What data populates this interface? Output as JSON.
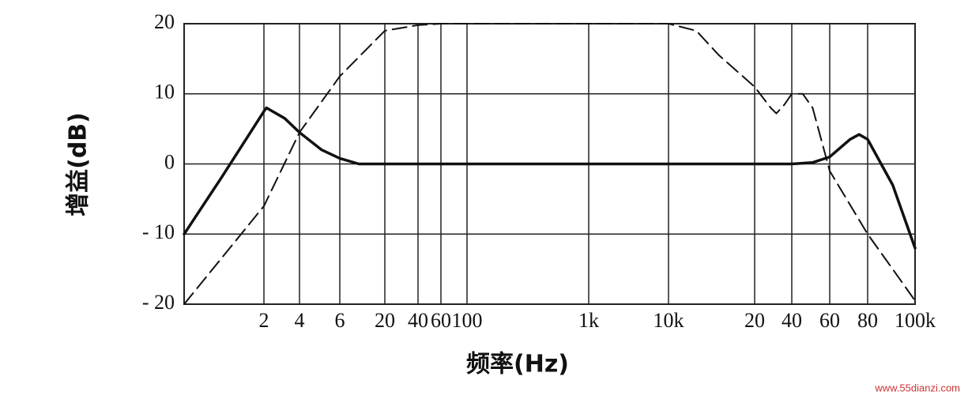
{
  "chart_data": {
    "type": "line",
    "ylabel": "增益(dB)",
    "xlabel": "频率(Hz)",
    "watermark": "www.55dianzi.com",
    "xlim": [
      1,
      100000
    ],
    "xticks": [
      2,
      4,
      6,
      20,
      40,
      60,
      100,
      {
        "value": 1000,
        "label": "1k"
      },
      {
        "value": 10000,
        "label": "10k"
      },
      {
        "value": 20000,
        "label": "20"
      },
      {
        "value": 40000,
        "label": "40"
      },
      {
        "value": 60000,
        "label": "60"
      },
      {
        "value": 80000,
        "label": "80"
      },
      {
        "value": 100000,
        "label": "100k"
      }
    ],
    "ylim": [
      -20,
      20
    ],
    "yticks": [
      {
        "value": -20,
        "label": "- 20"
      },
      {
        "value": -10,
        "label": "- 10"
      },
      0,
      10,
      20
    ],
    "grid": true,
    "series": [
      {
        "color": "#111111",
        "style": "solid",
        "x": [
          1,
          1.38,
          2,
          2.1,
          3,
          4,
          5,
          6,
          10,
          20,
          100,
          1000,
          10000,
          20000,
          40000,
          50000,
          60000,
          70000,
          75000,
          80000,
          90000,
          100000
        ],
        "values": [
          -10,
          -2,
          7.5,
          8,
          6.5,
          4.5,
          2,
          0.8,
          0,
          0,
          0,
          0,
          0,
          0,
          0,
          0.2,
          1,
          3.5,
          4.2,
          3.5,
          -3,
          -12
        ]
      },
      {
        "color": "#111111",
        "style": "dashed",
        "x": [
          1,
          2,
          4,
          6,
          20,
          40,
          60,
          100,
          1000,
          10000,
          12500,
          15000,
          20000,
          27000,
          30000,
          35000,
          40000,
          45000,
          50000,
          60000,
          80000,
          90000,
          100000
        ],
        "values": [
          -20,
          -6,
          4.5,
          12.5,
          19,
          19.8,
          20,
          20,
          20,
          20,
          19,
          15.5,
          11,
          8,
          7.2,
          8.5,
          10,
          10,
          8,
          -1,
          -10,
          -15,
          -19.5
        ]
      }
    ]
  }
}
